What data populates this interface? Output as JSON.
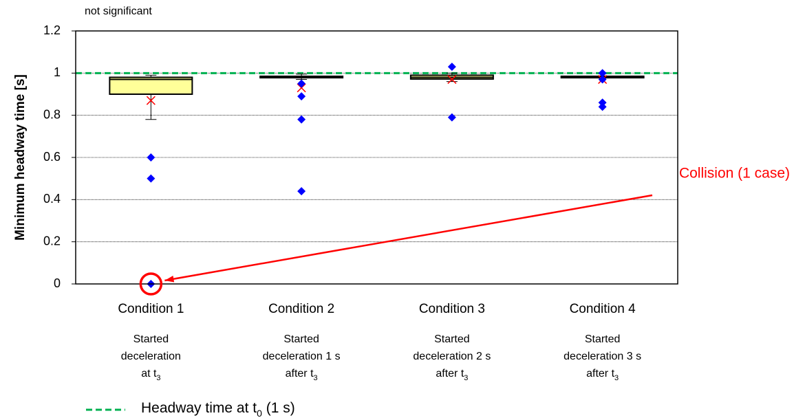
{
  "chart_data": {
    "type": "box",
    "annotation_top": "not significant",
    "y_label": "Minimum headway time [s]",
    "categories": [
      "Condition 1",
      "Condition 2",
      "Condition 3",
      "Condition 4"
    ],
    "descriptions": [
      {
        "lines": [
          "Started",
          "deceleration",
          "at t"
        ],
        "subscript": "3"
      },
      {
        "lines": [
          "Started",
          "deceleration 1 s",
          "after t"
        ],
        "subscript": "3"
      },
      {
        "lines": [
          "Started",
          "deceleration 2 s",
          "after t"
        ],
        "subscript": "3"
      },
      {
        "lines": [
          "Started",
          "deceleration 3 s",
          "after t"
        ],
        "subscript": "3"
      }
    ],
    "boxes": [
      {
        "min": 0.78,
        "q1": 0.9,
        "median": 0.97,
        "q3": 0.98,
        "max": 0.99,
        "mean": 0.87,
        "outliers": [
          0.6,
          0.5,
          0
        ],
        "color": "#ffff99"
      },
      {
        "min": 0.97,
        "q1": 0.978,
        "median": 0.98,
        "q3": 0.985,
        "max": 0.995,
        "mean": 0.93,
        "outliers": [
          0.95,
          0.89,
          0.78,
          0.44
        ],
        "color": "#ffff99"
      },
      {
        "min": 0.96,
        "q1": 0.972,
        "median": 0.98,
        "q3": 0.99,
        "max": 1.0,
        "mean": 0.97,
        "outliers": [
          1.03,
          0.79
        ],
        "color": "#ffff99"
      },
      {
        "min": 0.978,
        "q1": 0.978,
        "median": 0.98,
        "q3": 0.985,
        "max": 0.985,
        "mean": 0.97,
        "outliers": [
          1.0,
          0.97,
          0.86,
          0.84
        ],
        "color": "#ffff99"
      }
    ],
    "outlier_color": "#0000ff",
    "mean_color": "#ff0000",
    "reference_line": {
      "value": 1,
      "color": "#00b050",
      "label": "Headway time at t",
      "label_subscript": "0",
      "label_suffix": " (1 s)"
    },
    "callout": {
      "text": "Collision (1 case)",
      "color": "#ff0000",
      "target_box": 0,
      "target_outlier": 2
    },
    "ylim": [
      0,
      1.2
    ],
    "yticks": [
      0,
      0.2,
      0.4,
      0.6,
      0.8,
      1,
      1.2
    ],
    "grid": true
  }
}
